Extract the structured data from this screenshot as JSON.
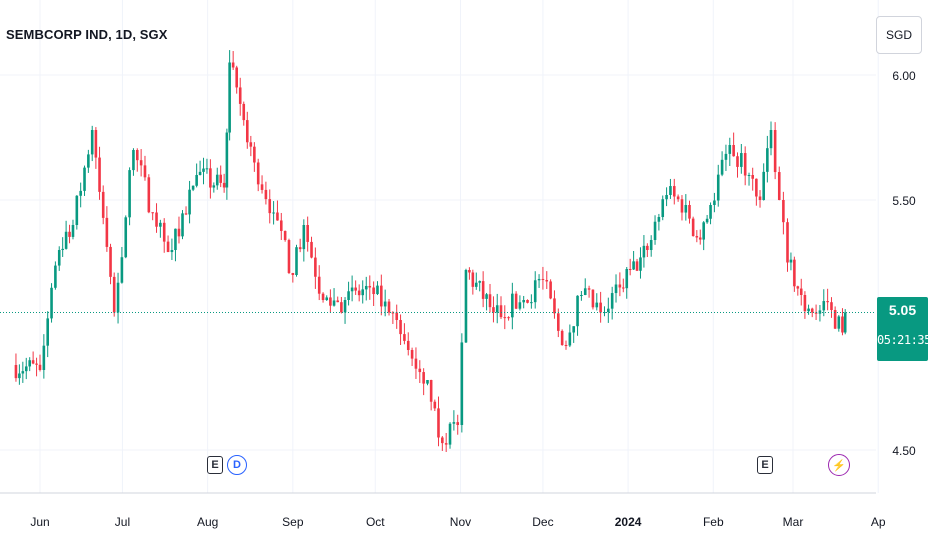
{
  "title": "SEMBCORP IND, 1D, SGX",
  "currency": "SGD",
  "last_price": "5.05",
  "countdown": "05:21:35",
  "colors": {
    "up": "#089981",
    "down": "#f23645",
    "grid": "#f0f3fa",
    "price_line": "#089981"
  },
  "events": [
    {
      "label": "E",
      "type": "earnings",
      "date": "Aug 8"
    },
    {
      "label": "D",
      "type": "dividend",
      "date": "Aug 10"
    },
    {
      "label": "E",
      "type": "earnings",
      "date": "Feb 21"
    },
    {
      "label": "⚡",
      "type": "split/event",
      "date": "Mar 19"
    }
  ],
  "chart_data": {
    "type": "candlestick",
    "title": "SEMBCORP IND, 1D, SGX",
    "y_ticks": [
      "6.00",
      "5.50",
      "4.50"
    ],
    "x_ticks": [
      "Jun",
      "Jul",
      "Aug",
      "Sep",
      "Oct",
      "Nov",
      "Dec",
      "2024",
      "Feb",
      "Mar",
      "Ap"
    ],
    "ylim": [
      4.35,
      6.1
    ],
    "grid": true,
    "last_price": 5.05,
    "segments": [
      {
        "from": "May 22",
        "to": "Jun 1",
        "close": 4.82
      },
      {
        "from": "Jun 1",
        "to": "Jun 8",
        "close": 5.3
      },
      {
        "from": "Jun 8",
        "to": "Jun 13",
        "close": 5.4
      },
      {
        "from": "Jun 13",
        "to": "Jun 20",
        "close": 5.78
      },
      {
        "from": "Jun 20",
        "to": "Jun 28",
        "close": 5.05
      },
      {
        "from": "Jun 28",
        "to": "Jul 5",
        "close": 5.7
      },
      {
        "from": "Jul 5",
        "to": "Jul 12",
        "close": 5.45
      },
      {
        "from": "Jul 12",
        "to": "Jul 19",
        "close": 5.3
      },
      {
        "from": "Jul 19",
        "to": "Jul 28",
        "close": 5.6
      },
      {
        "from": "Jul 28",
        "to": "Aug 7",
        "close": 5.55
      },
      {
        "from": "Aug 7",
        "to": "Aug 9",
        "close": 6.05
      },
      {
        "from": "Aug 9",
        "to": "Aug 18",
        "close": 5.65
      },
      {
        "from": "Aug 18",
        "to": "Aug 25",
        "close": 5.45
      },
      {
        "from": "Aug 25",
        "to": "Sep 1",
        "close": 5.2
      },
      {
        "from": "Sep 1",
        "to": "Sep 5",
        "close": 5.4
      },
      {
        "from": "Sep 5",
        "to": "Sep 12",
        "close": 5.1
      },
      {
        "from": "Sep 12",
        "to": "Sep 20",
        "close": 5.1
      },
      {
        "from": "Sep 20",
        "to": "Sep 29",
        "close": 5.15
      },
      {
        "from": "Sep 29",
        "to": "Oct 6",
        "close": 5.05
      },
      {
        "from": "Oct 6",
        "to": "Oct 13",
        "close": 4.9
      },
      {
        "from": "Oct 13",
        "to": "Oct 20",
        "close": 4.78
      },
      {
        "from": "Oct 20",
        "to": "Oct 24",
        "close": 4.55
      },
      {
        "from": "Oct 24",
        "to": "Oct 31",
        "close": 4.6
      },
      {
        "from": "Oct 31",
        "to": "Nov 3",
        "close": 5.22
      },
      {
        "from": "Nov 3",
        "to": "Nov 13",
        "close": 5.05
      },
      {
        "from": "Nov 13",
        "to": "Nov 24",
        "close": 5.1
      },
      {
        "from": "Nov 24",
        "to": "Dec 1",
        "close": 5.18
      },
      {
        "from": "Dec 1",
        "to": "Dec 8",
        "close": 4.92
      },
      {
        "from": "Dec 8",
        "to": "Dec 15",
        "close": 5.12
      },
      {
        "from": "Dec 15",
        "to": "Dec 22",
        "close": 5.05
      },
      {
        "from": "Dec 22",
        "to": "Dec 29",
        "close": 5.15
      },
      {
        "from": "Dec 29",
        "to": "Jan 8",
        "close": 5.3
      },
      {
        "from": "Jan 8",
        "to": "Jan 15",
        "close": 5.52
      },
      {
        "from": "Jan 15",
        "to": "Jan 22",
        "close": 5.48
      },
      {
        "from": "Jan 22",
        "to": "Jan 26",
        "close": 5.35
      },
      {
        "from": "Jan 26",
        "to": "Jan 31",
        "close": 5.48
      },
      {
        "from": "Jan 31",
        "to": "Feb 7",
        "close": 5.72
      },
      {
        "from": "Feb 7",
        "to": "Feb 14",
        "close": 5.6
      },
      {
        "from": "Feb 14",
        "to": "Feb 18",
        "close": 5.5
      },
      {
        "from": "Feb 18",
        "to": "Feb 22",
        "close": 5.78
      },
      {
        "from": "Feb 22",
        "to": "Feb 25",
        "close": 5.5
      },
      {
        "from": "Feb 25",
        "to": "Feb 28",
        "close": 5.25
      },
      {
        "from": "Feb 28",
        "to": "Mar 4",
        "close": 5.12
      },
      {
        "from": "Mar 4",
        "to": "Mar 8",
        "close": 5.05
      },
      {
        "from": "Mar 8",
        "to": "Mar 15",
        "close": 5.06
      },
      {
        "from": "Mar 15",
        "to": "Mar 19",
        "close": 4.97
      },
      {
        "from": "Mar 19",
        "to": "Mar 20",
        "close": 5.05
      }
    ]
  }
}
